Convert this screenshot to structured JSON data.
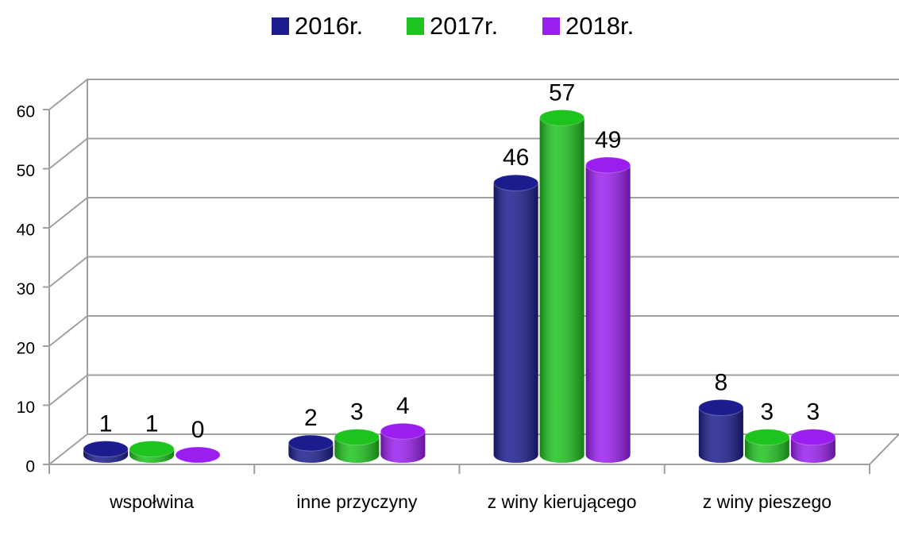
{
  "chart_data": {
    "type": "bar3d",
    "categories": [
      "wspołwina",
      "inne przyczyny",
      "z winy kierującego",
      "z winy pieszego"
    ],
    "series": [
      {
        "name": "2016r.",
        "color": "#1c1c8e",
        "values": [
          1,
          2,
          46,
          8
        ]
      },
      {
        "name": "2017r.",
        "color": "#1ec31e",
        "values": [
          1,
          3,
          57,
          3
        ]
      },
      {
        "name": "2018r.",
        "color": "#9a1ef0",
        "values": [
          0,
          4,
          49,
          3
        ]
      }
    ],
    "ylim": [
      0,
      60
    ],
    "yticks": [
      0,
      10,
      20,
      30,
      40,
      50,
      60
    ],
    "grid": true,
    "legend": "top"
  }
}
